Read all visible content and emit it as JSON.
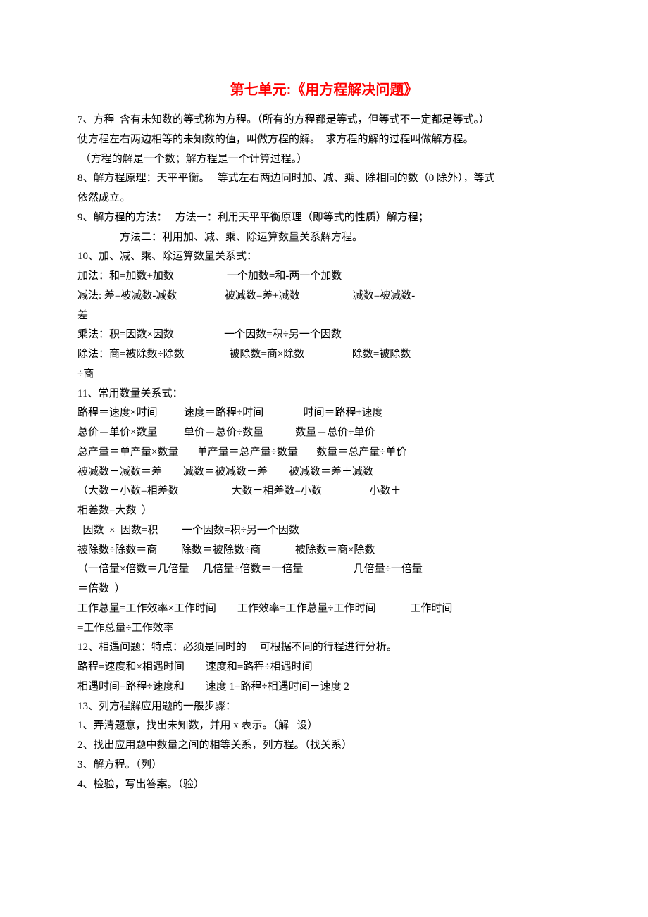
{
  "title": "第七单元:《用方程解决问题》",
  "colors": {
    "title": "#ff0000",
    "text": "#000000",
    "background": "#ffffff"
  },
  "typography": {
    "title_fontsize": 20,
    "body_fontsize": 15,
    "title_font": "SimHei",
    "body_font": "SimSun"
  },
  "lines": [
    "7、方程  含有未知数的等式称为方程。（所有的方程都是等式，但等式不一定都是等式。）",
    "使方程左右两边相等的未知数的值，叫做方程的解。  求方程的解的过程叫做解方程。",
    " （方程的解是一个数；解方程是一个计算过程。）",
    "8、解方程原理：天平平衡。   等式左右两边同时加、减、乘、除相同的数（0 除外），等式",
    "依然成立。",
    "9、解方程的方法：   方法一：利用天平平衡原理（即等式的性质）解方程；",
    "                方法二：利用加、减、乘、除运算数量关系解方程。",
    "10、加、减、乘、除运算数量关系式：",
    "加法：和=加数+加数                    一个加数=和-两一个加数",
    "减法: 差=被减数-减数                  被减数=差+减数                    减数=被减数-",
    "差",
    "乘法：积=因数×因数                   一个因数=积÷另一个因数",
    "除法：商=被除数÷除数                 被除数=商×除数                  除数=被除数",
    "÷商",
    "11、常用数量关系式：",
    "路程＝速度×时间          速度＝路程÷时间               时间＝路程÷速度",
    "总价＝单价×数量          单价＝总价÷数量            数量＝总价÷单价",
    "总产量＝单产量×数量       单产量＝总产量÷数量       数量＝总产量÷单价",
    "被减数－减数＝差        减数＝被减数－差        被减数＝差＋减数",
    "（大数－小数=相差数                    大数－相差数=小数                  小数＋",
    "相差数=大数  ）",
    "  因数  ×  因数=积         一个因数=积÷另一个因数",
    "被除数÷除数＝商         除数＝被除数÷商             被除数＝商×除数",
    "（一倍量×倍数＝几倍量     几倍量÷倍数＝一倍量                   几倍量÷一倍量",
    "＝倍数  ）",
    "工作总量=工作效率×工作时间        工作效率=工作总量÷工作时间             工作时间",
    "=工作总量÷工作效率",
    "12、相遇问题：特点：必须是同时的     可根据不同的行程进行分析。",
    "路程=速度和×相遇时间        速度和=路程÷相遇时间",
    "相遇时间=路程÷速度和        速度 1=路程÷相遇时间－速度 2",
    "13、列方程解应用题的一般步骤：",
    "1、弄清题意，找出未知数，并用 x 表示。（解   设）",
    "2、找出应用题中数量之间的相等关系，列方程。（找关系）",
    "3、解方程。（列）",
    "4、检验，写出答案。（验）"
  ]
}
